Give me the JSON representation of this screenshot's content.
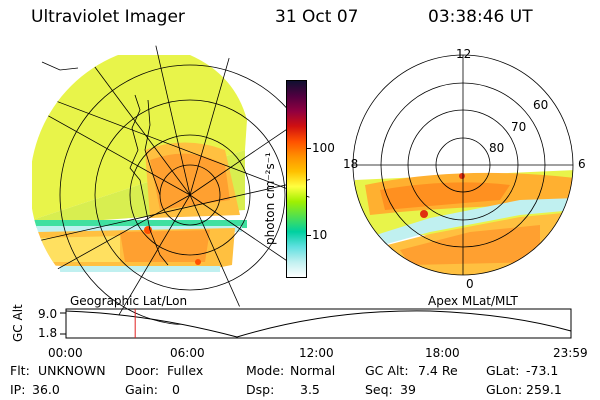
{
  "header": {
    "title": "Ultraviolet Imager",
    "date": "31 Oct 07",
    "time": "03:38:46 UT"
  },
  "colorbar": {
    "unit_label": "photon cm⁻²s⁻¹",
    "ticks": [
      "100",
      "10"
    ],
    "colors": [
      "#101030",
      "#500040",
      "#900040",
      "#d01010",
      "#ff5000",
      "#ff9000",
      "#ffc000",
      "#ffff40",
      "#a0f000",
      "#50e050",
      "#00d0a0",
      "#60e0e0",
      "#c0f0f0",
      "#ffffff"
    ]
  },
  "left_panel": {
    "label": "Geographic Lat/Lon"
  },
  "right_panel": {
    "label": "Apex MLat/MLT",
    "mlt_labels": {
      "top": "12",
      "left": "18",
      "right": "6",
      "bottom": "0"
    },
    "lat_labels": [
      "60",
      "70",
      "80"
    ]
  },
  "altitude_plot": {
    "ylabel": "GC Alt",
    "yticks": [
      "9.0",
      "1.8"
    ],
    "xticks": [
      "00:00",
      "06:00",
      "12:00",
      "18:00",
      "23:59"
    ],
    "current_time_fraction": 0.137,
    "marker_color": "#e02020"
  },
  "info": {
    "row1": [
      {
        "label": "Flt:",
        "value": "UNKNOWN"
      },
      {
        "label": "Door:",
        "value": "Fullex"
      },
      {
        "label": "Mode:",
        "value": "Normal"
      },
      {
        "label": "GC Alt:",
        "value": "7.4 Re"
      },
      {
        "label": "GLat:",
        "value": "-73.1"
      }
    ],
    "row2": [
      {
        "label": "IP:",
        "value": "36.0"
      },
      {
        "label": "Gain:",
        "value": "0"
      },
      {
        "label": "Dsp:",
        "value": "3.5"
      },
      {
        "label": "Seq:",
        "value": "39"
      },
      {
        "label": "GLon:",
        "value": "259.1"
      }
    ]
  }
}
